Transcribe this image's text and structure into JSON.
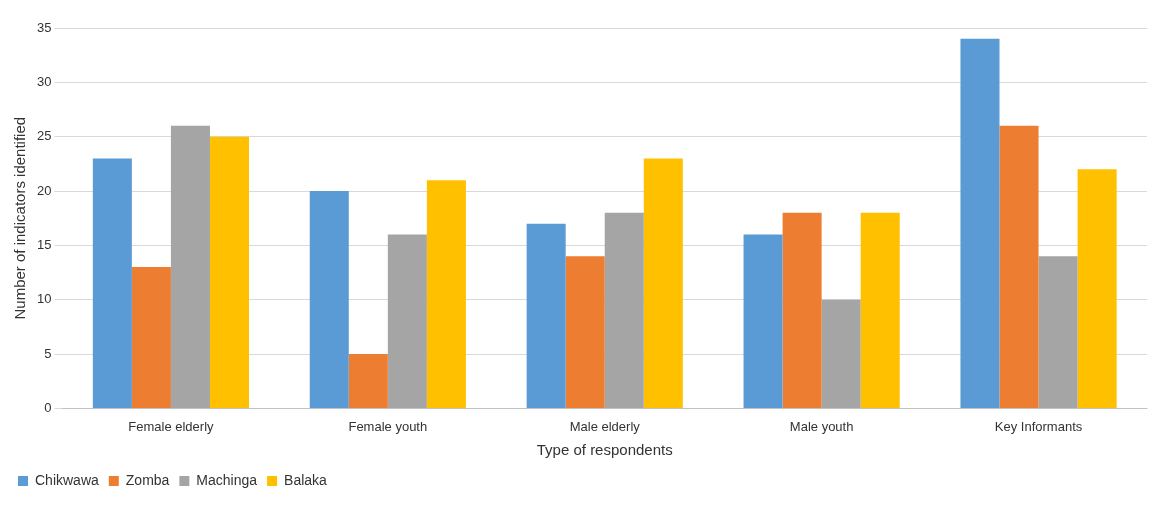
{
  "chart_data": {
    "type": "bar",
    "xlabel": "Type of respondents",
    "ylabel": "Number of indicators identified",
    "categories": [
      "Female elderly",
      "Female youth",
      "Male elderly",
      "Male youth",
      "Key Informants"
    ],
    "series": [
      {
        "name": "Chikwawa",
        "color": "#5b9bd5",
        "values": [
          23,
          20,
          17,
          16,
          34
        ]
      },
      {
        "name": "Zomba",
        "color": "#ed7d31",
        "values": [
          13,
          5,
          14,
          18,
          26
        ]
      },
      {
        "name": "Machinga",
        "color": "#a5a5a5",
        "values": [
          26,
          16,
          18,
          10,
          14
        ]
      },
      {
        "name": "Balaka",
        "color": "#ffc000",
        "values": [
          25,
          21,
          23,
          18,
          22
        ]
      }
    ],
    "ylim": [
      0,
      35
    ],
    "yticks": [
      0,
      5,
      10,
      15,
      20,
      25,
      30,
      35
    ],
    "grid": "y",
    "legend": "bottom left"
  }
}
